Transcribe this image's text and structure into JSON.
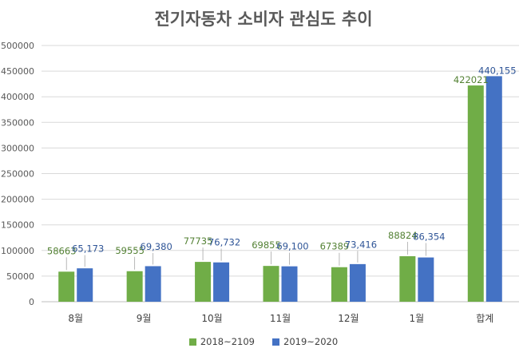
{
  "chart_data": {
    "type": "bar",
    "title": "전기자동차 소비자 관심도 추이",
    "xlabel": "",
    "ylabel": "",
    "categories": [
      "8월",
      "9월",
      "10월",
      "11월",
      "12월",
      "1월",
      "합계"
    ],
    "ylim": [
      0,
      500000
    ],
    "yticks": [
      0,
      50000,
      100000,
      150000,
      200000,
      250000,
      300000,
      350000,
      400000,
      450000,
      500000
    ],
    "ytick_labels": [
      "0",
      "50000",
      "100000",
      "150000",
      "200000",
      "250000",
      "300000",
      "350000",
      "400000",
      "450000",
      "500000"
    ],
    "grid": true,
    "legend_position": "bottom",
    "series": [
      {
        "name": "2018~2109",
        "color": "#70ad47",
        "label_color": "#548235",
        "values": [
          58663,
          59555,
          77735,
          69855,
          67389,
          88824,
          422021
        ],
        "data_labels": [
          "58663",
          "59555",
          "77735",
          "69855",
          "67389",
          "88824",
          "422021"
        ]
      },
      {
        "name": "2019~2020",
        "color": "#4472c4",
        "label_color": "#2f5597",
        "values": [
          65173,
          69380,
          76732,
          69100,
          73416,
          86354,
          440155
        ],
        "data_labels": [
          "65,173",
          "69,380",
          "76,732",
          "69,100",
          "73,416",
          "86,354",
          "440,155"
        ]
      }
    ]
  }
}
